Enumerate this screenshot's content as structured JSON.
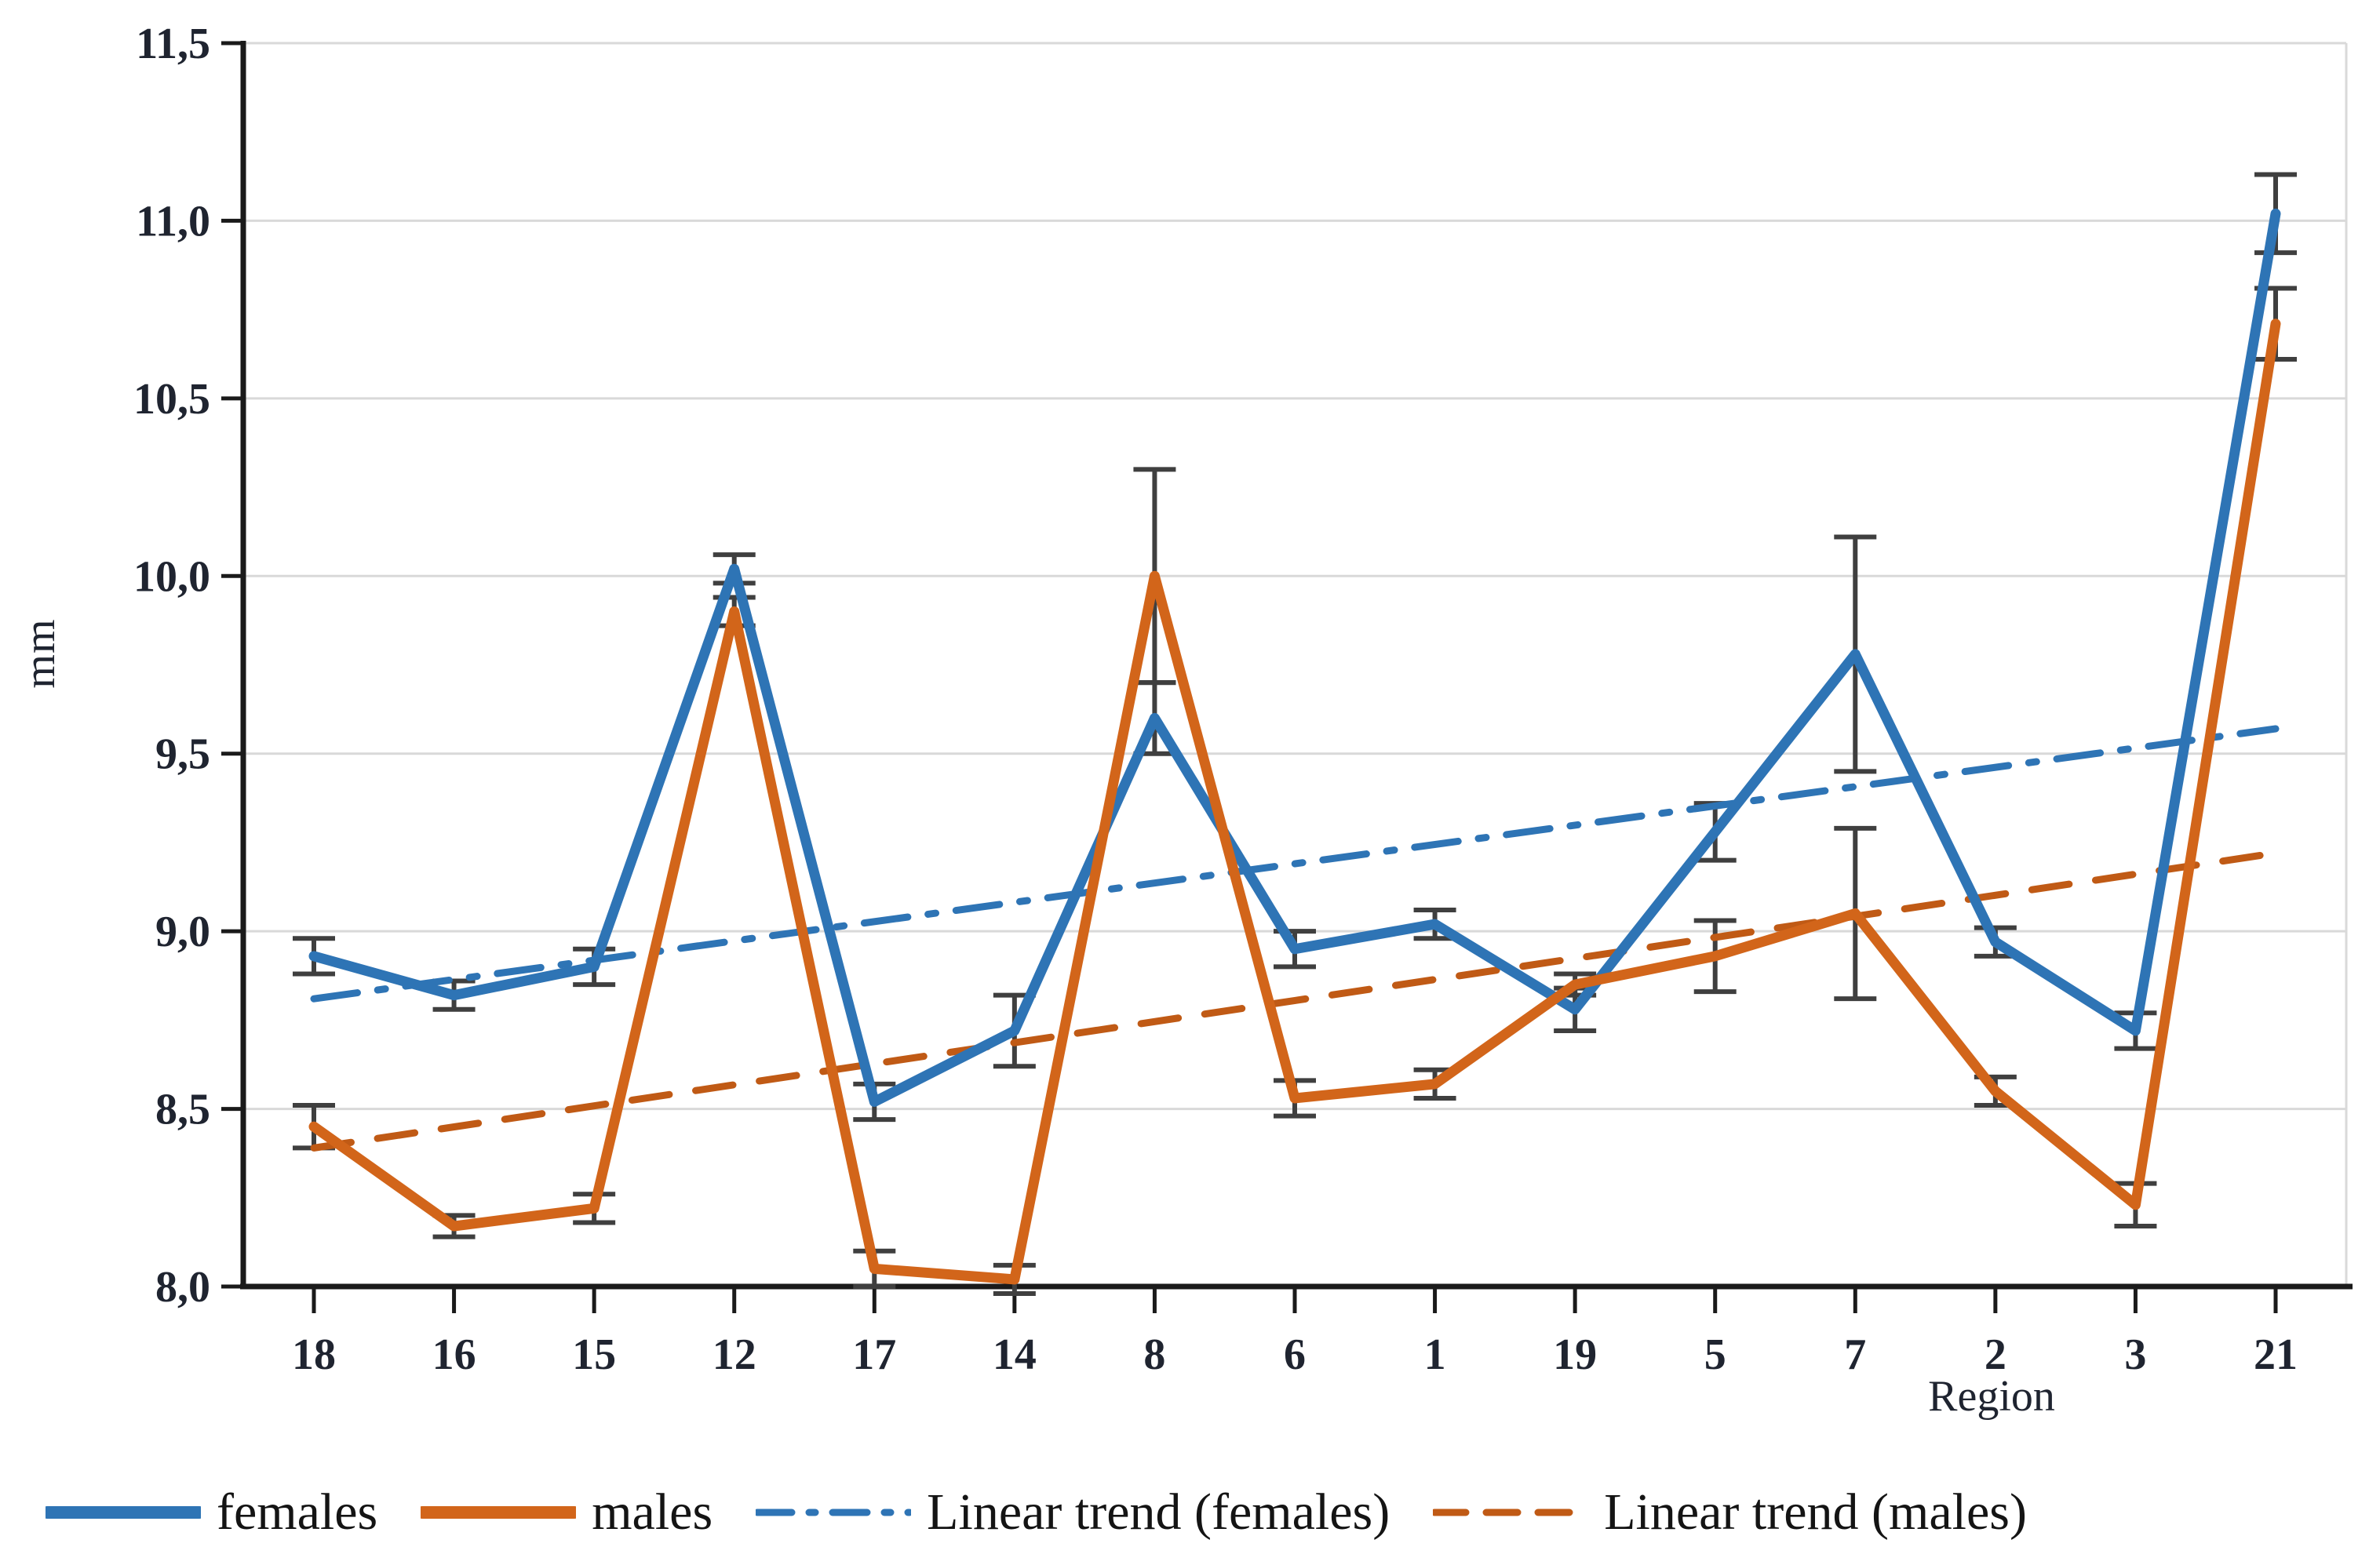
{
  "chart_data": {
    "type": "line",
    "title": "",
    "xlabel": "Region",
    "ylabel": "mm",
    "ylim": [
      8.0,
      11.5
    ],
    "ytick_step": 0.5,
    "decimal_separator": ",",
    "y_tick_labels": [
      "11,5",
      "11,0",
      "10,5",
      "10,0",
      "9,5",
      "9,0",
      "8,5",
      "8,0"
    ],
    "categories": [
      "18",
      "16",
      "15",
      "12",
      "17",
      "14",
      "8",
      "6",
      "1",
      "19",
      "5",
      "7",
      "2",
      "3",
      "21"
    ],
    "grid": "horizontal",
    "gridline_color": "#D9D9D9",
    "axis_color": "#1a1a1a",
    "tick_label_color": "#1f2430",
    "error_bar_color": "#3F3F3F",
    "legend_position": "bottom",
    "series": [
      {
        "name": "females",
        "kind": "data",
        "color": "#2E74B5",
        "dash": "solid",
        "values": [
          8.93,
          8.82,
          8.9,
          10.02,
          8.52,
          8.72,
          9.6,
          8.95,
          9.02,
          8.78,
          9.28,
          9.78,
          8.97,
          8.72,
          11.02
        ],
        "errors": [
          0.05,
          0.04,
          0.05,
          0.04,
          0.05,
          0.1,
          0.1,
          0.05,
          0.04,
          0.06,
          0.08,
          0.33,
          0.04,
          0.05,
          0.11
        ]
      },
      {
        "name": "males",
        "kind": "data",
        "color": "#D2651A",
        "dash": "solid",
        "values": [
          8.45,
          8.17,
          8.22,
          9.9,
          8.05,
          8.02,
          10.0,
          8.53,
          8.57,
          8.85,
          8.93,
          9.05,
          8.55,
          8.23,
          10.71
        ],
        "errors": [
          0.06,
          0.03,
          0.04,
          0.04,
          0.05,
          0.04,
          0.3,
          0.05,
          0.04,
          0.03,
          0.1,
          0.24,
          0.04,
          0.06,
          0.1
        ]
      },
      {
        "name": "Linear trend (females)",
        "kind": "trend",
        "color": "#2E74B5",
        "dash": "dashdot",
        "trend_endpoints": [
          8.81,
          9.57
        ]
      },
      {
        "name": "Linear trend (males)",
        "kind": "trend",
        "color": "#C05A15",
        "dash": "dash",
        "trend_endpoints": [
          8.39,
          9.22
        ]
      }
    ]
  }
}
